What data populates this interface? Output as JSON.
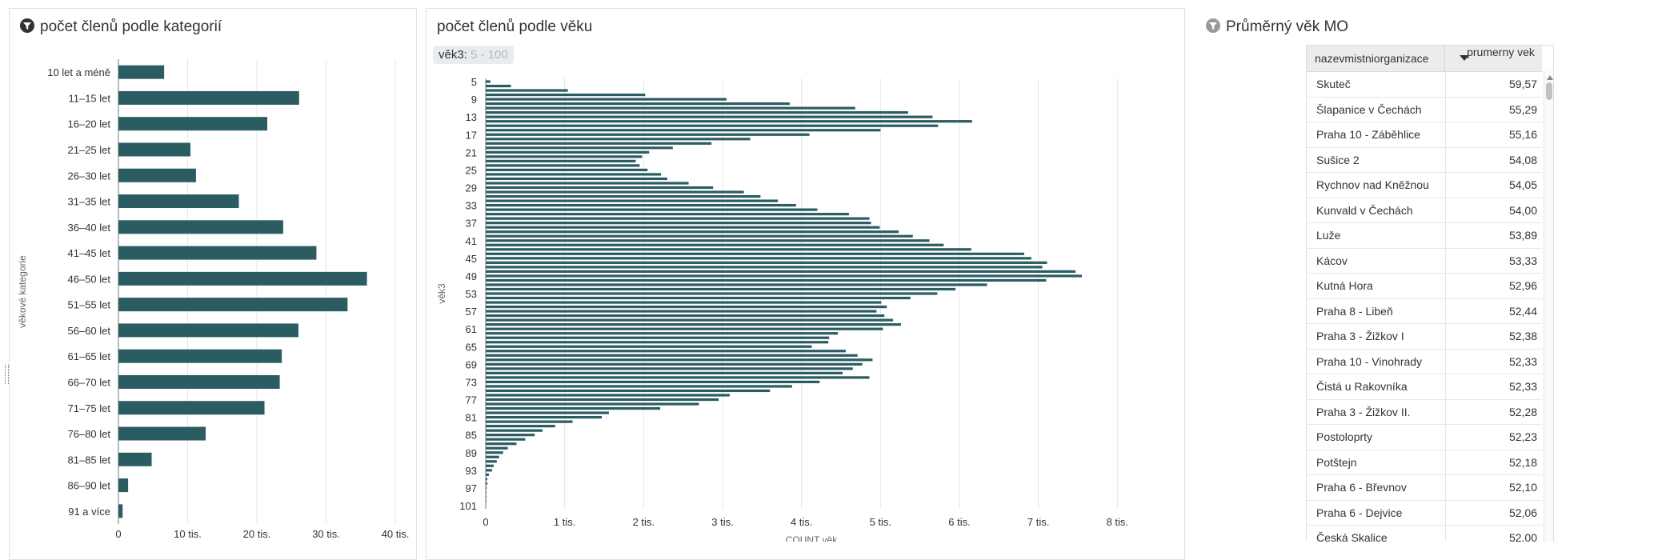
{
  "colors": {
    "bar": "#2a5c62",
    "grid": "#e5e5e5",
    "axis": "#333333",
    "header_bg": "#ececec"
  },
  "panels": {
    "categories": {
      "title": "počet členů podle kategorií",
      "icon": "filter-icon"
    },
    "age": {
      "title": "počet členů podle věku",
      "icon": "",
      "filter_label": "věk3:",
      "filter_range": "5 - 100"
    },
    "avg": {
      "title": "Průměrný věk MO",
      "icon": "filter-icon-inactive"
    }
  },
  "chart_data": [
    {
      "type": "bar",
      "orientation": "horizontal",
      "title": "počet členů podle kategorií",
      "ylabel": "věkové kategorie",
      "xlabel": "",
      "xlim": [
        0,
        43000
      ],
      "xticks": [
        0,
        10000,
        20000,
        30000,
        40000
      ],
      "xtick_labels": [
        "0",
        "10 tis.",
        "20 tis.",
        "30 tis.",
        "40 tis."
      ],
      "grid": true,
      "categories": [
        "10 let a méně",
        "11–15 let",
        "16–20 let",
        "21–25 let",
        "26–30 let",
        "31–35 let",
        "36–40 let",
        "41–45 let",
        "46–50 let",
        "51–55 let",
        "56–60 let",
        "61–65 let",
        "66–70 let",
        "71–75 let",
        "76–80 let",
        "81–85 let",
        "86–90 let",
        "91 a více"
      ],
      "values": [
        6600,
        26100,
        21500,
        10400,
        11200,
        17400,
        23800,
        28600,
        35900,
        33100,
        26000,
        23600,
        23300,
        21100,
        12600,
        4800,
        1400,
        600
      ]
    },
    {
      "type": "bar",
      "orientation": "horizontal",
      "title": "počet členů podle věku",
      "ylabel": "věk3",
      "xlabel": "COUNT věk",
      "xlim": [
        0,
        8250
      ],
      "xticks": [
        0,
        1000,
        2000,
        3000,
        4000,
        5000,
        6000,
        7000,
        8000
      ],
      "xtick_labels": [
        "0",
        "1 tis.",
        "2 tis.",
        "3 tis.",
        "4 tis.",
        "5 tis.",
        "6 tis.",
        "7 tis.",
        "8 tis."
      ],
      "ytick_labels": [
        "5",
        "9",
        "13",
        "17",
        "21",
        "25",
        "29",
        "33",
        "37",
        "41",
        "45",
        "49",
        "53",
        "57",
        "61",
        "65",
        "69",
        "73",
        "77",
        "81",
        "85",
        "89",
        "93",
        "97",
        "101"
      ],
      "grid": true,
      "x": [
        5,
        6,
        7,
        8,
        9,
        10,
        11,
        12,
        13,
        14,
        15,
        16,
        17,
        18,
        19,
        20,
        21,
        22,
        23,
        24,
        25,
        26,
        27,
        28,
        29,
        30,
        31,
        32,
        33,
        34,
        35,
        36,
        37,
        38,
        39,
        40,
        41,
        42,
        43,
        44,
        45,
        46,
        47,
        48,
        49,
        50,
        51,
        52,
        53,
        54,
        55,
        56,
        57,
        58,
        59,
        60,
        61,
        62,
        63,
        64,
        65,
        66,
        67,
        68,
        69,
        70,
        71,
        72,
        73,
        74,
        75,
        76,
        77,
        78,
        79,
        80,
        81,
        82,
        83,
        84,
        85,
        86,
        87,
        88,
        89,
        90,
        91,
        92,
        93,
        94,
        95,
        96,
        97,
        98,
        99,
        100,
        101
      ],
      "values": [
        60,
        320,
        1040,
        2020,
        3050,
        3850,
        4680,
        5350,
        5660,
        6160,
        5730,
        5000,
        4100,
        3350,
        2860,
        2370,
        2070,
        1980,
        1900,
        1950,
        2050,
        2220,
        2300,
        2570,
        2880,
        3270,
        3480,
        3700,
        3930,
        4200,
        4600,
        4860,
        4880,
        4990,
        5230,
        5410,
        5620,
        5800,
        6150,
        6820,
        6910,
        7110,
        7050,
        7470,
        7550,
        7100,
        6350,
        5950,
        5720,
        5380,
        5010,
        5080,
        4950,
        5050,
        5160,
        5260,
        5030,
        4460,
        4350,
        4340,
        4130,
        4560,
        4710,
        4900,
        4770,
        4650,
        4520,
        4860,
        4230,
        3880,
        3600,
        3090,
        2950,
        2700,
        2210,
        1560,
        1470,
        1100,
        880,
        720,
        620,
        500,
        390,
        280,
        220,
        170,
        140,
        100,
        80,
        40,
        20,
        20,
        10,
        5,
        5,
        2,
        0
      ]
    }
  ],
  "table": {
    "columns": [
      "nazevmistniorganizace",
      "prumerny vek"
    ],
    "rows": [
      [
        "Skuteč",
        "59,57"
      ],
      [
        "Šlapanice v Čechách",
        "55,29"
      ],
      [
        "Praha 10 - Záběhlice",
        "55,16"
      ],
      [
        "Sušice 2",
        "54,08"
      ],
      [
        "Rychnov nad Kněžnou",
        "54,05"
      ],
      [
        "Kunvald v Čechách",
        "54,00"
      ],
      [
        "Luže",
        "53,89"
      ],
      [
        "Kácov",
        "53,33"
      ],
      [
        "Kutná Hora",
        "52,96"
      ],
      [
        "Praha 8 - Libeň",
        "52,44"
      ],
      [
        "Praha 3 - Žižkov I",
        "52,38"
      ],
      [
        "Praha 10 - Vinohrady",
        "52,33"
      ],
      [
        "Čistá u Rakovníka",
        "52,33"
      ],
      [
        "Praha 3 - Žižkov II.",
        "52,28"
      ],
      [
        "Postoloprty",
        "52,23"
      ],
      [
        "Potštejn",
        "52,18"
      ],
      [
        "Praha 6 - Břevnov",
        "52,10"
      ],
      [
        "Praha 6 - Dejvice",
        "52,06"
      ],
      [
        "Česká Skalice",
        "52,00"
      ]
    ]
  }
}
